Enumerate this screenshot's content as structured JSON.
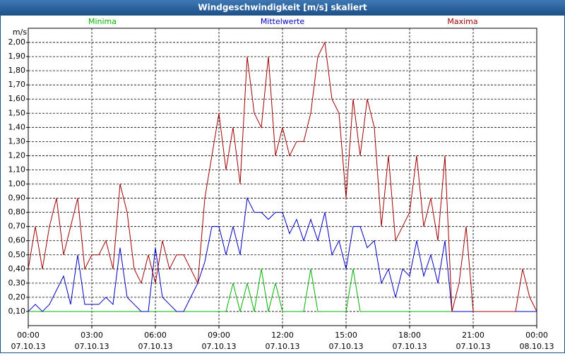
{
  "chart_data": {
    "type": "line",
    "title": "Windgeschwindigkeit [m/s] skaliert",
    "y_label": "m/s",
    "x": [
      0,
      20,
      40,
      60,
      80,
      100,
      120,
      140,
      160,
      180,
      200,
      220,
      240,
      260,
      280,
      300,
      320,
      340,
      360,
      380,
      400,
      420,
      440,
      460,
      480,
      500,
      520,
      540,
      560,
      580,
      600,
      620,
      640,
      660,
      680,
      700,
      720,
      740,
      760,
      780,
      800,
      820,
      840,
      860,
      880,
      900,
      920,
      940,
      960,
      980,
      1000,
      1020,
      1040,
      1060,
      1080,
      1100,
      1120,
      1140,
      1160,
      1180,
      1200,
      1220,
      1240,
      1260,
      1280,
      1300,
      1320,
      1340,
      1360,
      1380,
      1400,
      1420,
      1440
    ],
    "series": [
      {
        "name": "Minima",
        "color": "#00b000",
        "values": [
          0.1,
          0.1,
          0.1,
          0.1,
          0.1,
          0.1,
          0.1,
          0.1,
          0.1,
          0.1,
          0.1,
          0.1,
          0.1,
          0.1,
          0.1,
          0.1,
          0.1,
          0.1,
          0.1,
          0.1,
          0.1,
          0.1,
          0.1,
          0.1,
          0.1,
          0.1,
          0.1,
          0.1,
          0.1,
          0.3,
          0.1,
          0.3,
          0.1,
          0.4,
          0.1,
          0.3,
          0.1,
          0.1,
          0.1,
          0.1,
          0.4,
          0.1,
          0.1,
          0.1,
          0.1,
          0.1,
          0.4,
          0.1,
          0.1,
          0.1,
          0.1,
          0.1,
          0.1,
          0.1,
          0.1,
          0.1,
          0.1,
          0.1,
          0.1,
          0.1,
          0.1,
          0.1,
          0.1,
          0.1,
          0.1,
          0.1,
          0.1,
          0.1,
          0.1,
          0.1,
          0.1,
          0.1,
          0.1
        ]
      },
      {
        "name": "Mittelwerte",
        "color": "#0000c0",
        "values": [
          0.1,
          0.15,
          0.1,
          0.15,
          0.25,
          0.35,
          0.15,
          0.5,
          0.15,
          0.15,
          0.15,
          0.2,
          0.15,
          0.55,
          0.2,
          0.15,
          0.1,
          0.1,
          0.55,
          0.2,
          0.15,
          0.1,
          0.1,
          0.2,
          0.3,
          0.45,
          0.7,
          0.7,
          0.5,
          0.7,
          0.5,
          0.9,
          0.8,
          0.8,
          0.75,
          0.8,
          0.8,
          0.65,
          0.75,
          0.6,
          0.75,
          0.6,
          0.8,
          0.5,
          0.6,
          0.4,
          0.7,
          0.7,
          0.55,
          0.6,
          0.3,
          0.4,
          0.2,
          0.4,
          0.35,
          0.6,
          0.35,
          0.5,
          0.3,
          0.6,
          0.1,
          0.1,
          0.1,
          0.1,
          0.1,
          0.1,
          0.1,
          0.1,
          0.1,
          0.1,
          0.1,
          0.1,
          0.1
        ]
      },
      {
        "name": "Maxima",
        "color": "#a00000",
        "values": [
          0.4,
          0.7,
          0.4,
          0.7,
          0.9,
          0.5,
          0.7,
          0.9,
          0.4,
          0.5,
          0.5,
          0.6,
          0.4,
          1.0,
          0.8,
          0.4,
          0.3,
          0.5,
          0.3,
          0.6,
          0.4,
          0.5,
          0.5,
          0.4,
          0.3,
          0.9,
          1.2,
          1.5,
          1.1,
          1.4,
          1.0,
          1.9,
          1.5,
          1.4,
          1.9,
          1.2,
          1.4,
          1.2,
          1.3,
          1.3,
          1.5,
          1.9,
          2.0,
          1.6,
          1.5,
          0.9,
          1.6,
          1.2,
          1.6,
          1.4,
          0.7,
          1.2,
          0.6,
          0.7,
          0.8,
          1.2,
          0.7,
          0.9,
          0.6,
          1.2,
          0.1,
          0.3,
          0.7,
          0.1,
          0.1,
          0.1,
          0.1,
          0.1,
          0.1,
          0.1,
          0.4,
          0.2,
          0.1
        ]
      }
    ],
    "xlim": [
      0,
      1440
    ],
    "xticks": [
      {
        "value": 0,
        "label": "00:00",
        "date": "07.10.13"
      },
      {
        "value": 180,
        "label": "03:00",
        "date": "07.10.13"
      },
      {
        "value": 360,
        "label": "06:00",
        "date": "07.10.13"
      },
      {
        "value": 540,
        "label": "09:00",
        "date": "07.10.13"
      },
      {
        "value": 720,
        "label": "12:00",
        "date": "07.10.13"
      },
      {
        "value": 900,
        "label": "15:00",
        "date": "07.10.13"
      },
      {
        "value": 1080,
        "label": "18:00",
        "date": "07.10.13"
      },
      {
        "value": 1260,
        "label": "21:00",
        "date": "07.10.13"
      },
      {
        "value": 1440,
        "label": "00:00",
        "date": "08.10.13"
      }
    ],
    "ylim": [
      0,
      2.1
    ],
    "yticks": [
      {
        "value": 0.1,
        "label": "0,10"
      },
      {
        "value": 0.2,
        "label": "0,20"
      },
      {
        "value": 0.3,
        "label": "0,30"
      },
      {
        "value": 0.4,
        "label": "0,40"
      },
      {
        "value": 0.5,
        "label": "0,50"
      },
      {
        "value": 0.6,
        "label": "0,60"
      },
      {
        "value": 0.7,
        "label": "0,70"
      },
      {
        "value": 0.8,
        "label": "0,80"
      },
      {
        "value": 0.9,
        "label": "0,90"
      },
      {
        "value": 1.0,
        "label": "1,00"
      },
      {
        "value": 1.1,
        "label": "1,10"
      },
      {
        "value": 1.2,
        "label": "1,20"
      },
      {
        "value": 1.3,
        "label": "1,30"
      },
      {
        "value": 1.4,
        "label": "1,40"
      },
      {
        "value": 1.5,
        "label": "1,50"
      },
      {
        "value": 1.6,
        "label": "1,60"
      },
      {
        "value": 1.7,
        "label": "1,70"
      },
      {
        "value": 1.8,
        "label": "1,80"
      },
      {
        "value": 1.9,
        "label": "1,90"
      },
      {
        "value": 2.0,
        "label": "2,00"
      }
    ],
    "grid": true
  }
}
